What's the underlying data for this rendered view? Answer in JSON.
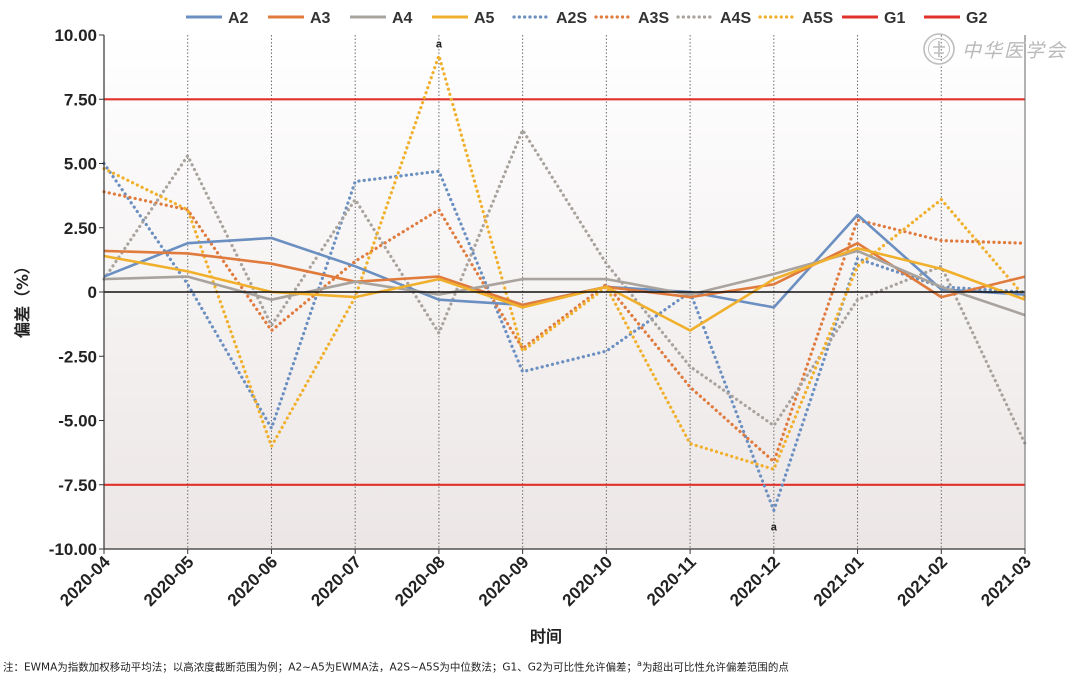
{
  "chart_data": {
    "type": "line",
    "title": "",
    "xlabel": "时间",
    "ylabel": "偏差（%）",
    "ylim": [
      -10,
      10
    ],
    "yticks": [
      10,
      7.5,
      5,
      2.5,
      0,
      -2.5,
      -5,
      -7.5,
      -10
    ],
    "ytick_labels": [
      "10.00",
      "7.50",
      "5.00",
      "2.50",
      "0",
      "-2.50",
      "-5.00",
      "-7.50",
      "-10.00"
    ],
    "categories": [
      "2020-04",
      "2020-05",
      "2020-06",
      "2020-07",
      "2020-08",
      "2020-09",
      "2020-10",
      "2020-11",
      "2020-12",
      "2021-01",
      "2021-02",
      "2021-03"
    ],
    "series": [
      {
        "name": "A2",
        "style": "solid",
        "color": "#6a8fc0",
        "values": [
          0.6,
          1.9,
          2.1,
          1.0,
          -0.3,
          -0.5,
          0.2,
          0.0,
          -0.6,
          3.0,
          0.1,
          -0.1
        ]
      },
      {
        "name": "A3",
        "style": "solid",
        "color": "#e07b3e",
        "values": [
          1.6,
          1.5,
          1.1,
          0.4,
          0.6,
          -0.5,
          0.2,
          -0.2,
          0.3,
          1.9,
          -0.2,
          0.6
        ]
      },
      {
        "name": "A4",
        "style": "solid",
        "color": "#a9a39e",
        "values": [
          0.5,
          0.6,
          -0.3,
          0.4,
          -0.1,
          0.5,
          0.5,
          -0.1,
          0.7,
          1.6,
          0.2,
          -0.9
        ]
      },
      {
        "name": "A5",
        "style": "solid",
        "color": "#f0b02c",
        "values": [
          1.4,
          0.8,
          0.0,
          -0.2,
          0.5,
          -0.6,
          0.2,
          -1.5,
          0.5,
          1.7,
          0.9,
          -0.3
        ]
      },
      {
        "name": "A2S",
        "style": "dotted",
        "color": "#6a8fc0",
        "values": [
          5.0,
          0.3,
          -5.3,
          4.3,
          4.7,
          -3.1,
          -2.3,
          0.0,
          -8.5,
          1.3,
          0.2,
          0.0
        ]
      },
      {
        "name": "A3S",
        "style": "dotted",
        "color": "#e07b3e",
        "values": [
          3.9,
          3.2,
          -1.5,
          1.2,
          3.2,
          -2.2,
          0.3,
          -3.7,
          -6.6,
          2.8,
          2.0,
          1.9
        ]
      },
      {
        "name": "A4S",
        "style": "dotted",
        "color": "#a9a39e",
        "values": [
          0.5,
          5.3,
          -1.3,
          3.6,
          -1.6,
          6.3,
          1.1,
          -2.9,
          -5.2,
          -0.3,
          1.0,
          -5.9
        ]
      },
      {
        "name": "A5S",
        "style": "dotted",
        "color": "#f0b02c",
        "values": [
          4.8,
          3.2,
          -6.0,
          -0.2,
          9.2,
          -2.3,
          0.2,
          -5.9,
          -6.9,
          1.0,
          3.6,
          -0.2
        ]
      },
      {
        "name": "G1",
        "style": "solid",
        "color": "#e0312b",
        "values": [
          7.5,
          7.5,
          7.5,
          7.5,
          7.5,
          7.5,
          7.5,
          7.5,
          7.5,
          7.5,
          7.5,
          7.5
        ]
      },
      {
        "name": "G2",
        "style": "solid",
        "color": "#e0312b",
        "values": [
          -7.5,
          -7.5,
          -7.5,
          -7.5,
          -7.5,
          -7.5,
          -7.5,
          -7.5,
          -7.5,
          -7.5,
          -7.5,
          -7.5
        ]
      }
    ],
    "annotations": [
      {
        "text": "a",
        "x": "2020-08",
        "y": 9.2,
        "position": "above"
      },
      {
        "text": "a",
        "x": "2020-12",
        "y": -8.5,
        "position": "below"
      }
    ],
    "legend": "top",
    "grid": "vertical dotted lines at each category",
    "zero_line": true
  },
  "watermark": {
    "text": "中华医学会",
    "icon": "society-seal-icon"
  },
  "note": {
    "text_before": "注：EWMA为指数加权移动平均法；以高浓度截断范围为例；A2~A5为EWMA法，A2S~A5S为中位数法；G1、G2为可比性允许偏差；",
    "sup": "a",
    "text_after": "为超出可比性允许偏差范围的点"
  }
}
